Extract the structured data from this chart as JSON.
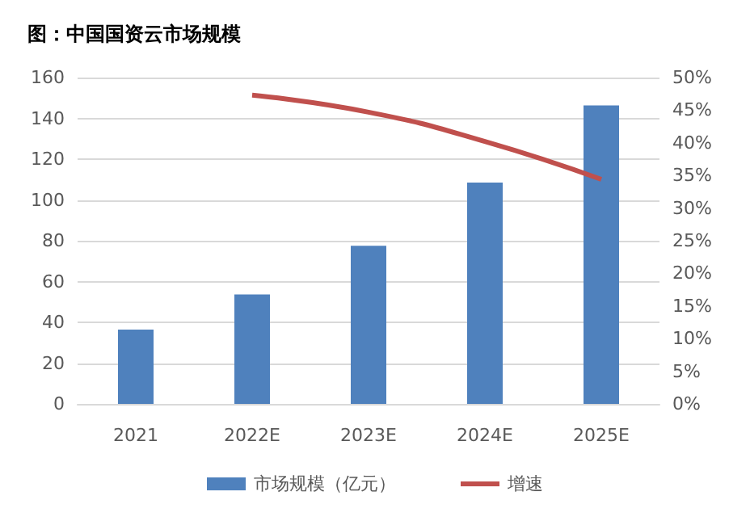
{
  "chart_data": {
    "type": "bar",
    "title": "图：中国国资云市场规模",
    "categories": [
      "2021",
      "2022E",
      "2023E",
      "2024E",
      "2025E"
    ],
    "series": [
      {
        "name": "市场规模（亿元）",
        "color": "#4f81bd",
        "values": [
          36.4,
          53.7,
          77.5,
          108.5,
          146.3
        ]
      },
      {
        "name": "增速",
        "type": "line",
        "axis": "y2",
        "color": "#c0504d",
        "values": [
          null,
          47.3,
          44.7,
          40.2,
          34.4
        ]
      }
    ],
    "ylim": [
      0,
      160
    ],
    "yticks": [
      0,
      20,
      40,
      60,
      80,
      100,
      120,
      140,
      160
    ],
    "y2lim": [
      0,
      50
    ],
    "y2ticks": [
      {
        "value": 0,
        "label": "0%"
      },
      {
        "value": 5,
        "label": "5%"
      },
      {
        "value": 10,
        "label": "10%"
      },
      {
        "value": 15,
        "label": "15%"
      },
      {
        "value": 20,
        "label": "20%"
      },
      {
        "value": 25,
        "label": "25%"
      },
      {
        "value": 30,
        "label": "30%"
      },
      {
        "value": 35,
        "label": "35%"
      },
      {
        "value": 40,
        "label": "40%"
      },
      {
        "value": 45,
        "label": "45%"
      },
      {
        "value": 50,
        "label": "50%"
      }
    ],
    "grid": "y",
    "legend": "bottom",
    "marker": "none"
  }
}
